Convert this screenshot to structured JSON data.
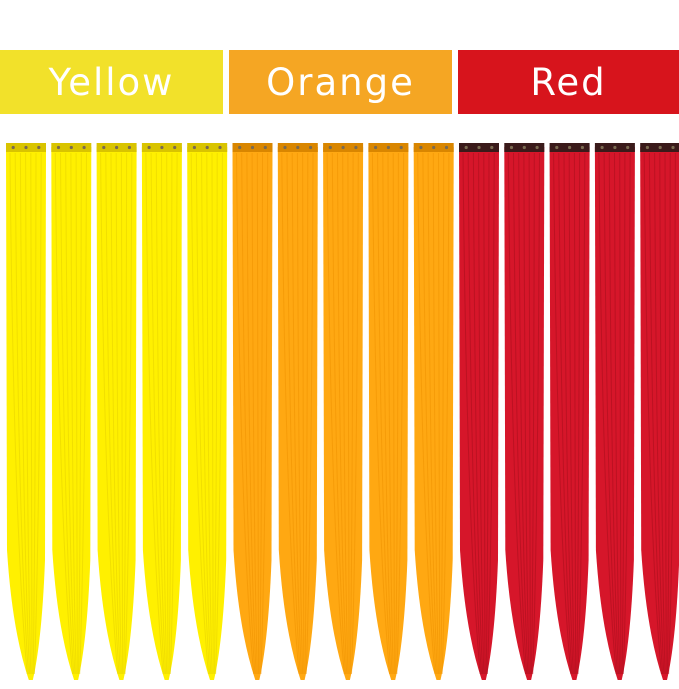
{
  "labels": [
    {
      "text": "Yellow",
      "color": "#f2e12a"
    },
    {
      "text": "Orange",
      "color": "#f5a623"
    },
    {
      "text": "Red",
      "color": "#d7141c"
    }
  ],
  "hair_groups": [
    {
      "color_name": "yellow",
      "count": 5,
      "fill": "#fff000",
      "shade": "#e6d100",
      "clip": "#d9c400"
    },
    {
      "color_name": "orange",
      "count": 5,
      "fill": "#ffa812",
      "shade": "#ef9200",
      "clip": "#d98600"
    },
    {
      "color_name": "red",
      "count": 5,
      "fill": "#d6162a",
      "shade": "#a80e1c",
      "clip": "#3a1a1a"
    }
  ]
}
